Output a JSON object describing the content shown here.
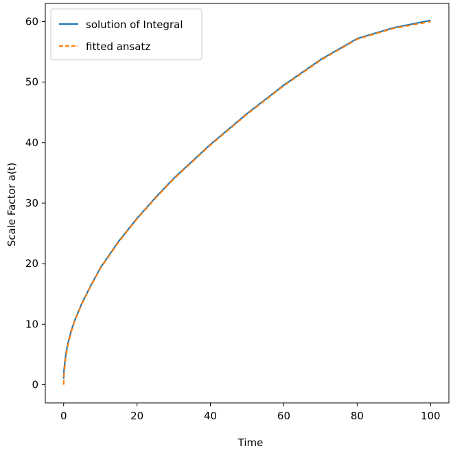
{
  "chart_data": {
    "type": "line",
    "xlabel": "Time",
    "ylabel": "Scale Factor a(t)",
    "xlim": [
      -5,
      105
    ],
    "ylim": [
      -3,
      63
    ],
    "xticks": [
      0,
      20,
      40,
      60,
      80,
      100
    ],
    "yticks": [
      0,
      10,
      20,
      30,
      40,
      50,
      60
    ],
    "grid": false,
    "legend_position": "upper left",
    "x": [
      0,
      0.1,
      0.5,
      1,
      2,
      3,
      5,
      7.5,
      10,
      15,
      20,
      25,
      30,
      40,
      50,
      60,
      70,
      80,
      90,
      100
    ],
    "series": [
      {
        "name": "solution of Integral",
        "color": "#1f77b4",
        "style": "solid",
        "values": [
          1.0,
          2.4,
          4.6,
          6.4,
          8.8,
          10.6,
          13.5,
          16.5,
          19.3,
          23.7,
          27.5,
          30.9,
          34.1,
          39.7,
          44.8,
          49.5,
          53.7,
          57.2,
          59.0,
          60.2
        ]
      },
      {
        "name": "fitted ansatz",
        "color": "#ff7f0e",
        "style": "dashed",
        "values": [
          0.0,
          1.6,
          4.2,
          6.1,
          8.6,
          10.5,
          13.4,
          16.4,
          19.2,
          23.6,
          27.4,
          30.8,
          34.0,
          39.6,
          44.7,
          49.4,
          53.6,
          57.1,
          58.9,
          60.0
        ]
      }
    ]
  }
}
